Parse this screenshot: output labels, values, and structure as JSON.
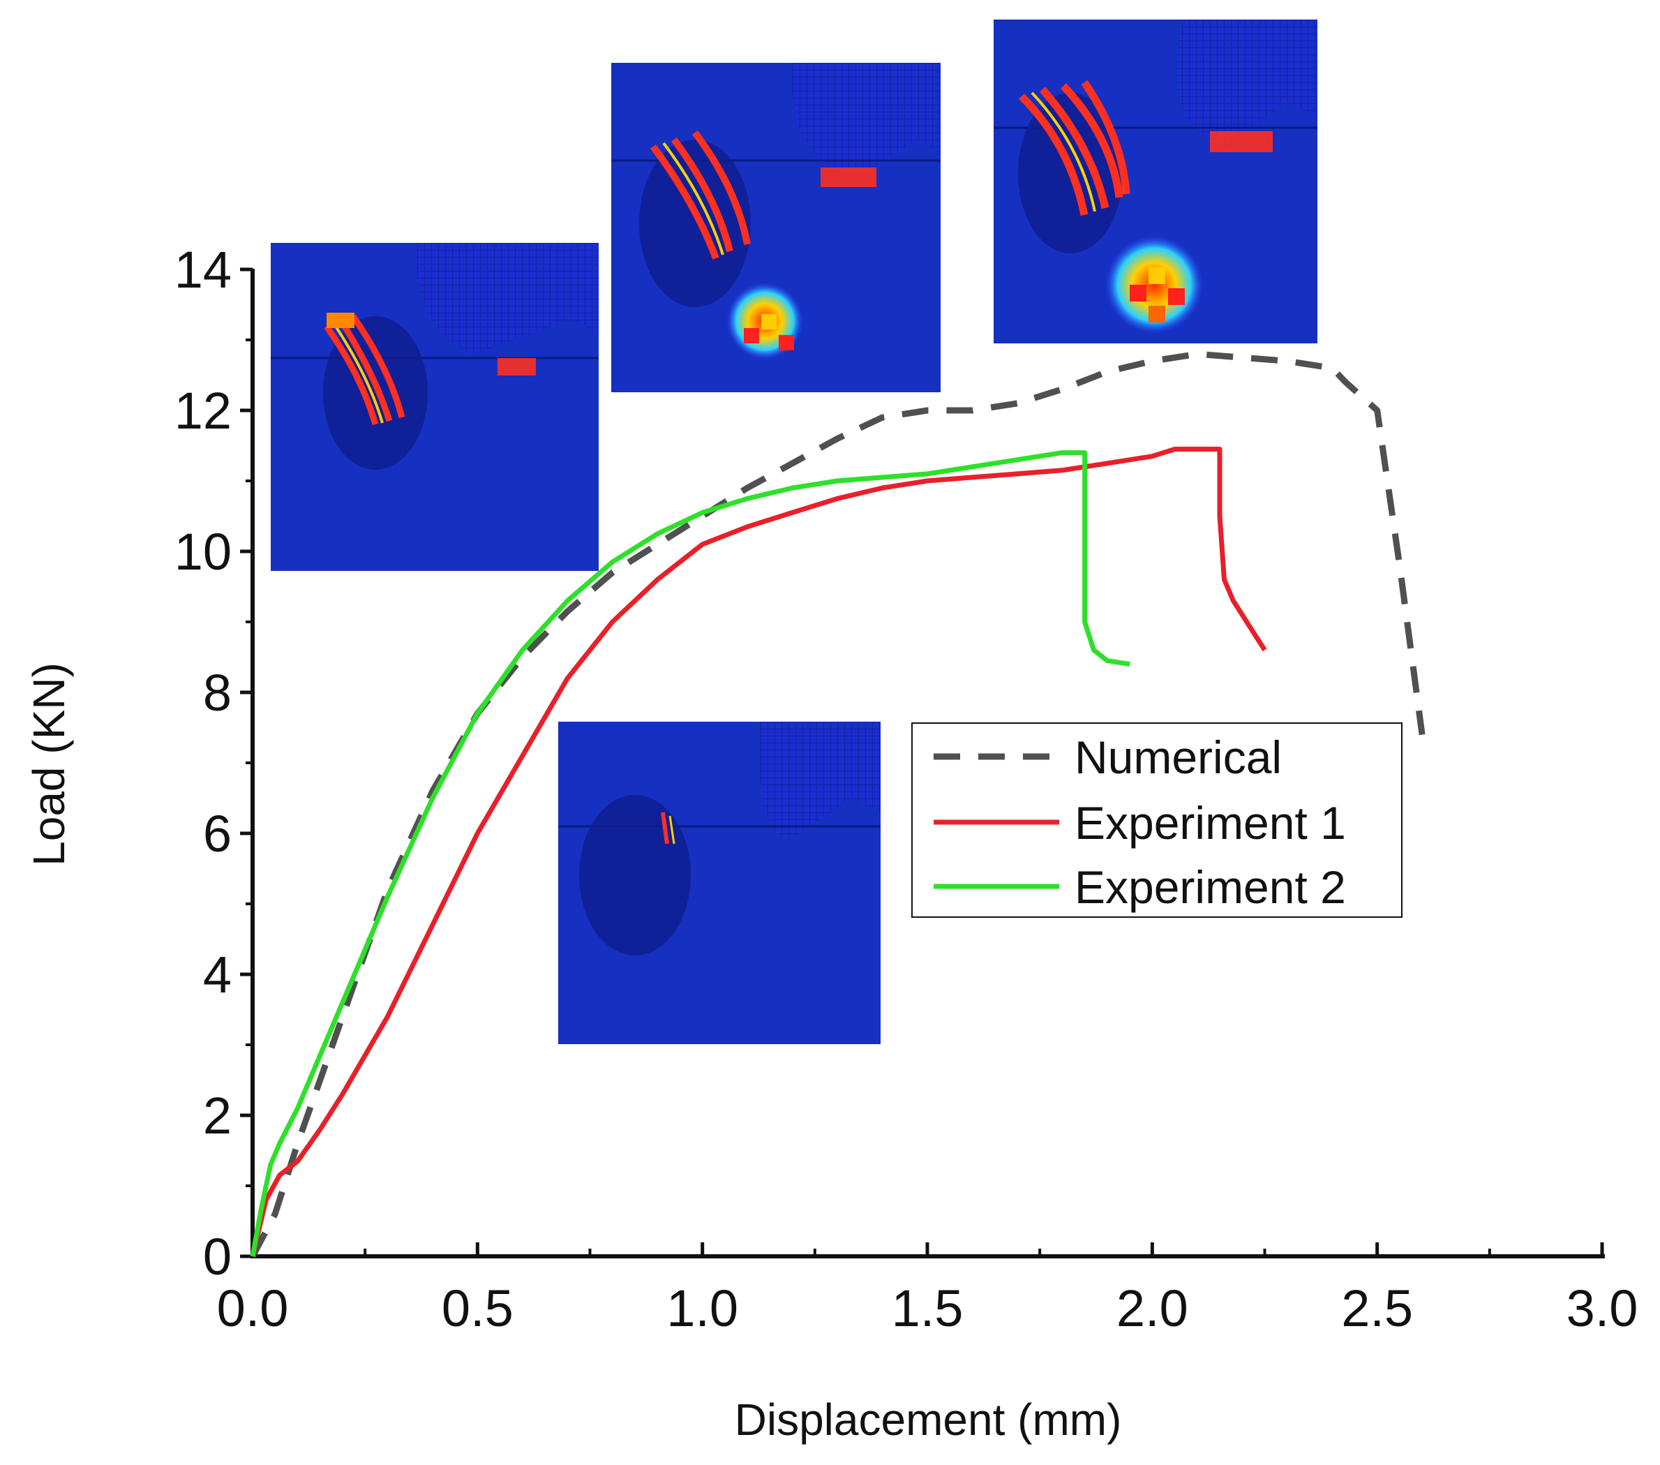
{
  "chart_data": {
    "type": "line",
    "title": "",
    "xlabel": "Displacement (mm)",
    "ylabel": "Load (KN)",
    "xlim": [
      0,
      3.0
    ],
    "ylim": [
      0,
      14
    ],
    "x_ticks": [
      "0.0",
      "0.5",
      "1.0",
      "1.5",
      "2.0",
      "2.5",
      "3.0"
    ],
    "y_ticks": [
      "0",
      "2",
      "4",
      "6",
      "8",
      "10",
      "12",
      "14"
    ],
    "legend_position": "center-right",
    "series": [
      {
        "name": "Numerical",
        "color": "#505050",
        "style": "dashed",
        "points": [
          [
            0,
            0
          ],
          [
            0.05,
            0.6
          ],
          [
            0.1,
            1.6
          ],
          [
            0.2,
            3.4
          ],
          [
            0.3,
            5.2
          ],
          [
            0.4,
            6.6
          ],
          [
            0.5,
            7.7
          ],
          [
            0.6,
            8.5
          ],
          [
            0.7,
            9.15
          ],
          [
            0.8,
            9.7
          ],
          [
            0.9,
            10.1
          ],
          [
            1.0,
            10.5
          ],
          [
            1.1,
            10.9
          ],
          [
            1.2,
            11.25
          ],
          [
            1.3,
            11.6
          ],
          [
            1.4,
            11.9
          ],
          [
            1.5,
            12.0
          ],
          [
            1.6,
            12.0
          ],
          [
            1.7,
            12.1
          ],
          [
            1.8,
            12.3
          ],
          [
            1.9,
            12.55
          ],
          [
            2.0,
            12.7
          ],
          [
            2.1,
            12.8
          ],
          [
            2.2,
            12.75
          ],
          [
            2.3,
            12.7
          ],
          [
            2.4,
            12.6
          ],
          [
            2.43,
            12.4
          ],
          [
            2.5,
            12.0
          ],
          [
            2.55,
            9.8
          ],
          [
            2.6,
            7.4
          ]
        ]
      },
      {
        "name": "Experiment 1",
        "color": "#e8202a",
        "style": "solid",
        "points": [
          [
            0,
            0
          ],
          [
            0.03,
            0.8
          ],
          [
            0.06,
            1.15
          ],
          [
            0.1,
            1.35
          ],
          [
            0.15,
            1.8
          ],
          [
            0.2,
            2.3
          ],
          [
            0.3,
            3.4
          ],
          [
            0.4,
            4.7
          ],
          [
            0.5,
            6.0
          ],
          [
            0.6,
            7.1
          ],
          [
            0.7,
            8.2
          ],
          [
            0.8,
            9.0
          ],
          [
            0.9,
            9.6
          ],
          [
            1.0,
            10.1
          ],
          [
            1.1,
            10.35
          ],
          [
            1.2,
            10.55
          ],
          [
            1.3,
            10.75
          ],
          [
            1.4,
            10.9
          ],
          [
            1.5,
            11.0
          ],
          [
            1.6,
            11.05
          ],
          [
            1.7,
            11.1
          ],
          [
            1.8,
            11.15
          ],
          [
            1.9,
            11.25
          ],
          [
            2.0,
            11.35
          ],
          [
            2.05,
            11.45
          ],
          [
            2.1,
            11.45
          ],
          [
            2.15,
            11.45
          ],
          [
            2.15,
            10.5
          ],
          [
            2.16,
            9.6
          ],
          [
            2.18,
            9.3
          ],
          [
            2.2,
            9.1
          ],
          [
            2.23,
            8.8
          ],
          [
            2.25,
            8.6
          ]
        ]
      },
      {
        "name": "Experiment 2",
        "color": "#2ee02a",
        "style": "solid",
        "points": [
          [
            0,
            0
          ],
          [
            0.02,
            0.7
          ],
          [
            0.04,
            1.3
          ],
          [
            0.06,
            1.6
          ],
          [
            0.1,
            2.1
          ],
          [
            0.2,
            3.6
          ],
          [
            0.3,
            5.1
          ],
          [
            0.4,
            6.5
          ],
          [
            0.5,
            7.7
          ],
          [
            0.6,
            8.6
          ],
          [
            0.7,
            9.3
          ],
          [
            0.8,
            9.85
          ],
          [
            0.9,
            10.25
          ],
          [
            1.0,
            10.55
          ],
          [
            1.1,
            10.75
          ],
          [
            1.2,
            10.9
          ],
          [
            1.3,
            11.0
          ],
          [
            1.4,
            11.05
          ],
          [
            1.5,
            11.1
          ],
          [
            1.6,
            11.2
          ],
          [
            1.7,
            11.3
          ],
          [
            1.8,
            11.4
          ],
          [
            1.85,
            11.4
          ],
          [
            1.85,
            10.5
          ],
          [
            1.85,
            9.0
          ],
          [
            1.87,
            8.6
          ],
          [
            1.9,
            8.45
          ],
          [
            1.95,
            8.4
          ]
        ]
      }
    ]
  },
  "insets": [
    {
      "name": "damage-inset-1",
      "x": 0.05,
      "y": 7.7
    },
    {
      "name": "damage-inset-2",
      "x": 1.0,
      "y": 10.6
    },
    {
      "name": "damage-inset-3",
      "x": 1.8,
      "y": 11.4
    },
    {
      "name": "damage-inset-4",
      "x": 2.4,
      "y": 12.7
    }
  ]
}
